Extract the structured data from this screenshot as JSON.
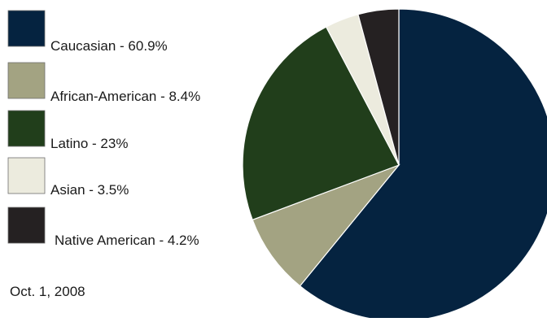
{
  "chart_data": {
    "type": "pie",
    "title": "",
    "date_label": "Oct. 1, 2008",
    "legend_position": "left",
    "slices": [
      {
        "label": "Caucasian - 60.9%",
        "category": "Caucasian",
        "value": 60.9,
        "color": "#052340"
      },
      {
        "label": "African-American - 8.4%",
        "category": "African-American",
        "value": 8.4,
        "color": "#a3a382"
      },
      {
        "label": "Latino - 23%",
        "category": "Latino",
        "value": 23,
        "color": "#213e1b"
      },
      {
        "label": "Asian - 3.5%",
        "category": "Asian",
        "value": 3.5,
        "color": "#ecebde"
      },
      {
        "label": "Native American - 4.2%",
        "category": "Native American",
        "value": 4.2,
        "color": "#252122"
      }
    ]
  }
}
